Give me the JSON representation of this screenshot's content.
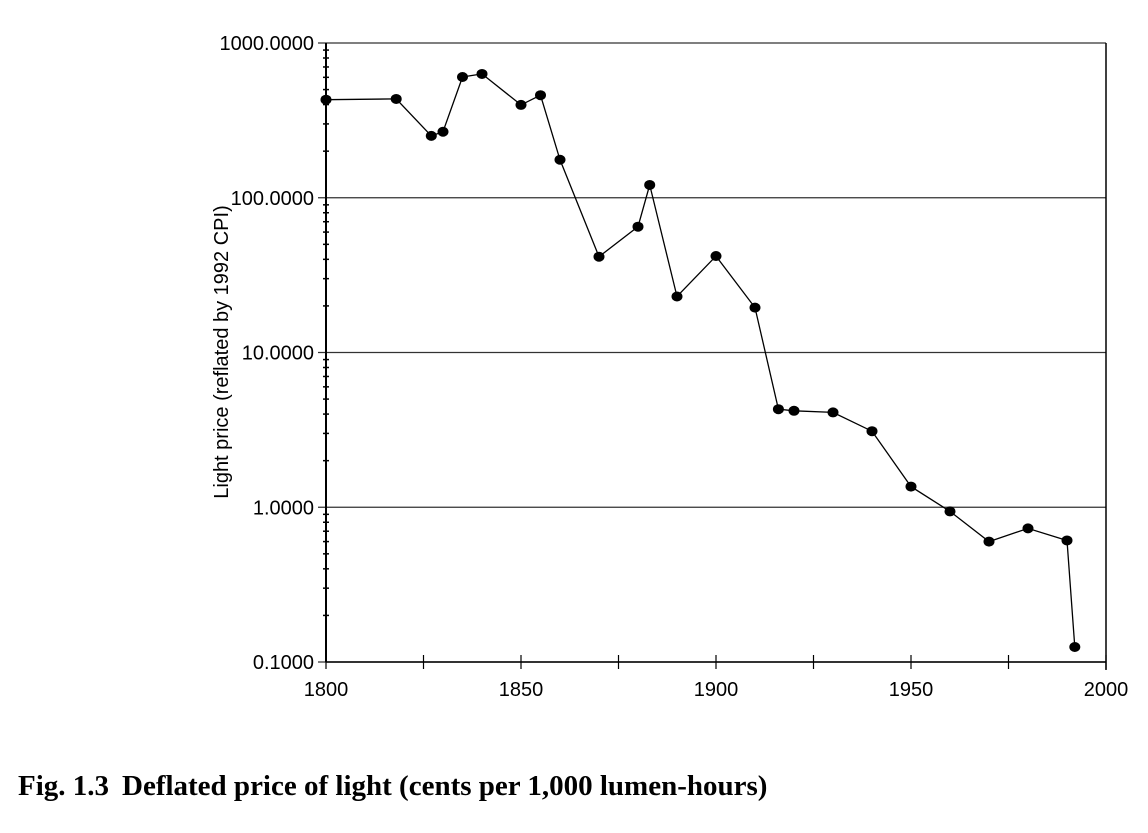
{
  "chart_data": {
    "type": "line",
    "title": "",
    "xlabel": "",
    "ylabel": "Light price (reflated by 1992 CPI)",
    "yscale": "log",
    "xlim": [
      1800,
      2000
    ],
    "ylim": [
      0.1,
      1000
    ],
    "grid": "horizontal",
    "legend": "none",
    "x_ticks": [
      "1800",
      "1850",
      "1900",
      "1950",
      "2000"
    ],
    "y_ticks": [
      "1000.0000",
      "100.0000",
      "10.0000",
      "1.0000",
      "0.1000"
    ],
    "series": [
      {
        "name": "Deflated price of light",
        "color": "#000000",
        "x": [
          1800,
          1818,
          1827,
          1830,
          1835,
          1840,
          1850,
          1855,
          1860,
          1870,
          1880,
          1883,
          1890,
          1900,
          1910,
          1916,
          1920,
          1930,
          1940,
          1950,
          1960,
          1970,
          1980,
          1990,
          1992
        ],
        "y": [
          430,
          435,
          251,
          267,
          603,
          631,
          398,
          460,
          176,
          41.6,
          65,
          121,
          23,
          42,
          19.5,
          4.3,
          4.2,
          4.1,
          3.1,
          1.36,
          0.94,
          0.6,
          0.73,
          0.61,
          0.125
        ]
      }
    ]
  },
  "caption": {
    "number": "Fig. 1.3",
    "text": "Deflated price of light (cents per 1,000 lumen-hours)"
  }
}
